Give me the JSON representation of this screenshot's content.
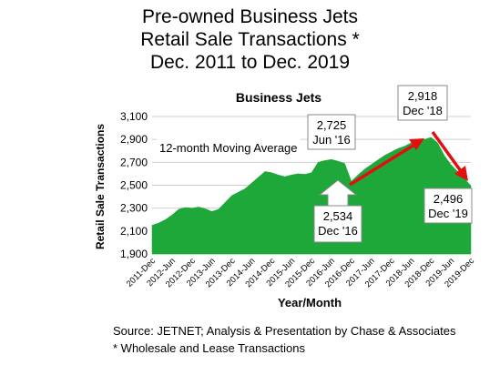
{
  "title_lines": [
    "Pre-owned Business Jets",
    "Retail Sale Transactions *",
    "Dec. 2011 to Dec. 2019"
  ],
  "footnotes": [
    "Source: JETNET; Analysis & Presentation by Chase & Associates",
    "* Wholesale and Lease Transactions"
  ],
  "colors": {
    "area": "#1fa83a",
    "trend_arrow": "#e01010",
    "callout_arrow": "#ffffff",
    "grid": "#cfcfcf"
  },
  "chart_data": {
    "type": "area",
    "title": "Business Jets",
    "xlabel": "Year/Month",
    "ylabel": "Retail Sale Transactions",
    "ylim": [
      1900,
      3100
    ],
    "yticks": [
      1900,
      2100,
      2300,
      2500,
      2700,
      2900,
      3100
    ],
    "ytick_labels": [
      "1,900",
      "2,100",
      "2,300",
      "2,500",
      "2,700",
      "2,900",
      "3,100"
    ],
    "xticks": [
      "2011-Dec",
      "2012-Jun",
      "2012-Dec",
      "2013-Jun",
      "2013-Dec",
      "2014-Jun",
      "2014-Dec",
      "2015-Jun",
      "2015-Dec",
      "2016-Jun",
      "2016-Dec",
      "2017-Jun",
      "2017-Dec",
      "2018-Jun",
      "2018-Dec",
      "2019-Jun",
      "2019-Dec"
    ],
    "grid": "horizontal",
    "series": [
      {
        "name": "12-month Moving Average",
        "x": [
          "2011-Dec",
          "2012-Feb",
          "2012-Apr",
          "2012-Jun",
          "2012-Aug",
          "2012-Oct",
          "2012-Dec",
          "2013-Feb",
          "2013-Apr",
          "2013-Jun",
          "2013-Aug",
          "2013-Oct",
          "2013-Dec",
          "2014-Feb",
          "2014-Apr",
          "2014-Jun",
          "2014-Aug",
          "2014-Oct",
          "2014-Dec",
          "2015-Feb",
          "2015-Apr",
          "2015-Jun",
          "2015-Aug",
          "2015-Oct",
          "2015-Dec",
          "2016-Feb",
          "2016-Apr",
          "2016-Jun",
          "2016-Aug",
          "2016-Oct",
          "2016-Dec",
          "2017-Feb",
          "2017-Apr",
          "2017-Jun",
          "2017-Aug",
          "2017-Oct",
          "2017-Dec",
          "2018-Feb",
          "2018-Apr",
          "2018-Jun",
          "2018-Aug",
          "2018-Oct",
          "2018-Dec",
          "2019-Feb",
          "2019-Apr",
          "2019-Jun",
          "2019-Aug",
          "2019-Oct",
          "2019-Dec"
        ],
        "values": [
          2150,
          2170,
          2200,
          2240,
          2290,
          2305,
          2300,
          2310,
          2295,
          2270,
          2290,
          2350,
          2410,
          2440,
          2470,
          2520,
          2570,
          2620,
          2610,
          2590,
          2575,
          2590,
          2600,
          2595,
          2610,
          2700,
          2715,
          2725,
          2710,
          2690,
          2534,
          2590,
          2640,
          2680,
          2720,
          2760,
          2790,
          2820,
          2840,
          2870,
          2890,
          2900,
          2918,
          2870,
          2760,
          2680,
          2620,
          2560,
          2496
        ]
      }
    ],
    "annotations": [
      {
        "value": "2,725",
        "label": "Jun '16"
      },
      {
        "value": "2,534",
        "label": "Dec '16"
      },
      {
        "value": "2,918",
        "label": "Dec '18"
      },
      {
        "value": "2,496",
        "label": "Dec '19"
      }
    ]
  }
}
